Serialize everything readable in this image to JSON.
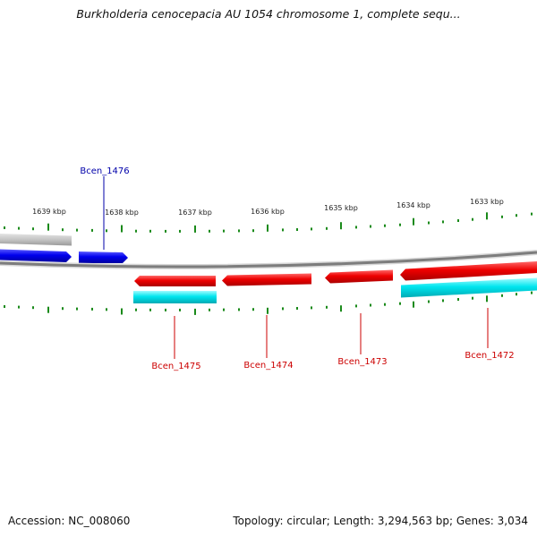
{
  "title": "Burkholderia cenocepacia AU 1054 chromosome 1, complete sequ...",
  "footer": {
    "accession": "Accession: NC_008060",
    "summary": "Topology: circular; Length: 3,294,563 bp; Genes: 3,034"
  },
  "scale_labels": [
    "1639 kbp",
    "1638 kbp",
    "1637 kbp",
    "1636 kbp",
    "1635 kbp",
    "1634 kbp",
    "1633 kbp"
  ],
  "gene_labels": {
    "bcen_1476": "Bcen_1476",
    "bcen_1475": "Bcen_1475",
    "bcen_1474": "Bcen_1474",
    "bcen_1473": "Bcen_1473",
    "bcen_1472": "Bcen_1472"
  },
  "colors": {
    "forward_gene": "#0000ee",
    "reverse_gene": "#ee0000",
    "cds_band": "#00e5ee",
    "pseudo_band": "#bbbbbb",
    "backbone": "#888888",
    "ticks": "#1a8a1a",
    "forward_label": "#0000aa",
    "reverse_label": "#cc0000"
  }
}
